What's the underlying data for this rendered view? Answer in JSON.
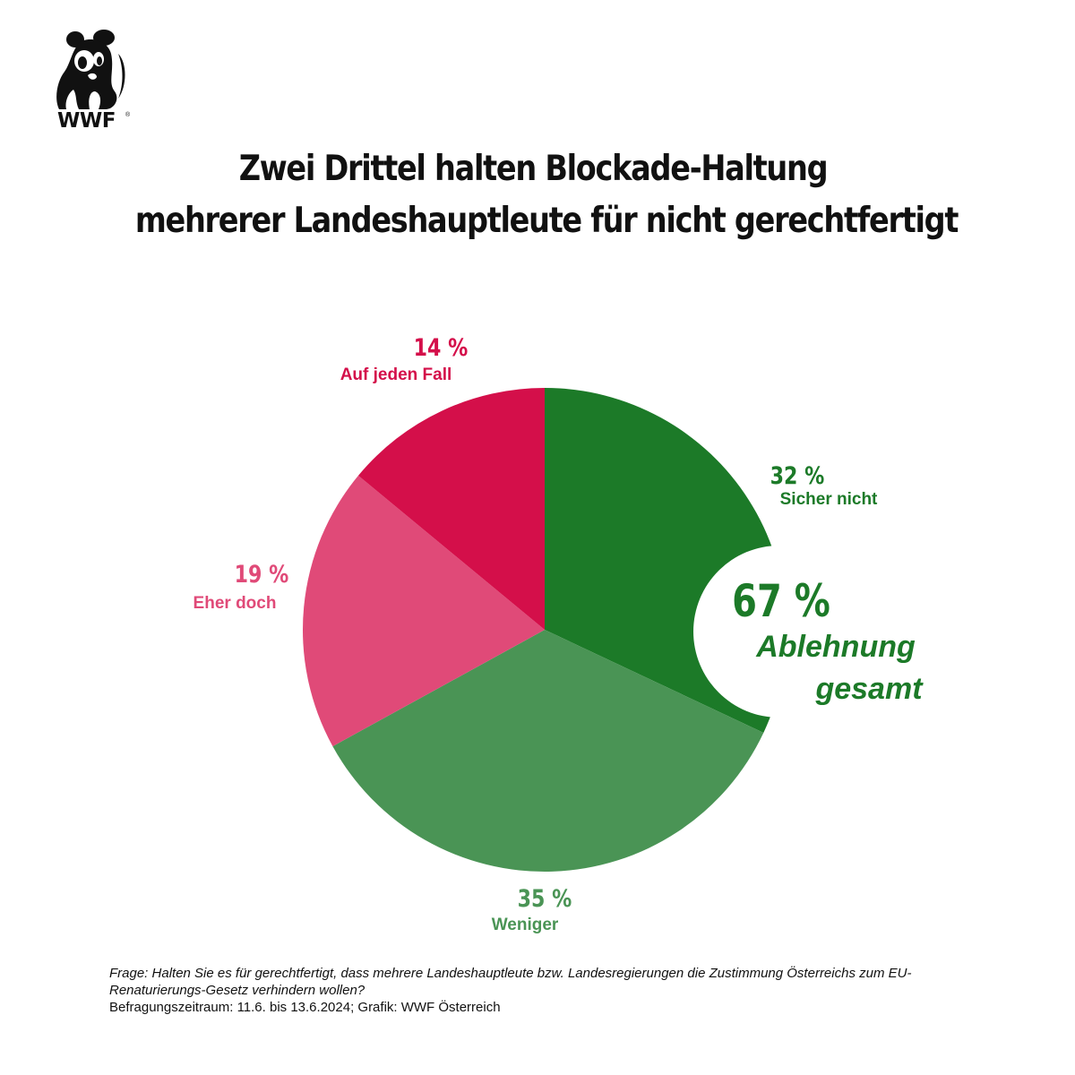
{
  "logo": {
    "text": "WWF",
    "icon": "panda-icon"
  },
  "title": {
    "line1": "Zwei Drittel halten Blockade-Haltung",
    "line2": "mehrerer Landeshauptleute für nicht gerechtfertigt"
  },
  "chart_data": {
    "type": "pie",
    "slices": [
      {
        "label": "Sicher nicht",
        "value": 32,
        "value_label": "32 %",
        "color": "#1c7a28"
      },
      {
        "label": "Weniger",
        "value": 35,
        "value_label": "35 %",
        "color": "#4a9455"
      },
      {
        "label": "Eher doch",
        "value": 19,
        "value_label": "19 %",
        "color": "#e04a78"
      },
      {
        "label": "Auf jeden Fall",
        "value": 14,
        "value_label": "14 %",
        "color": "#d40f4a"
      }
    ],
    "annotation": {
      "value": "67 %",
      "line1": "Ablehnung",
      "line2": "gesamt",
      "color": "#1c7a28"
    }
  },
  "footnote": {
    "question": "Frage: Halten Sie es für gerechtfertigt, dass mehrere Landeshauptleute bzw. Landesregierungen die Zustimmung Österreichs zum EU-Renaturierungs-Gesetz verhindern wollen?",
    "source": "Befragungszeitraum: 11.6. bis 13.6.2024; Grafik: WWF Österreich"
  }
}
